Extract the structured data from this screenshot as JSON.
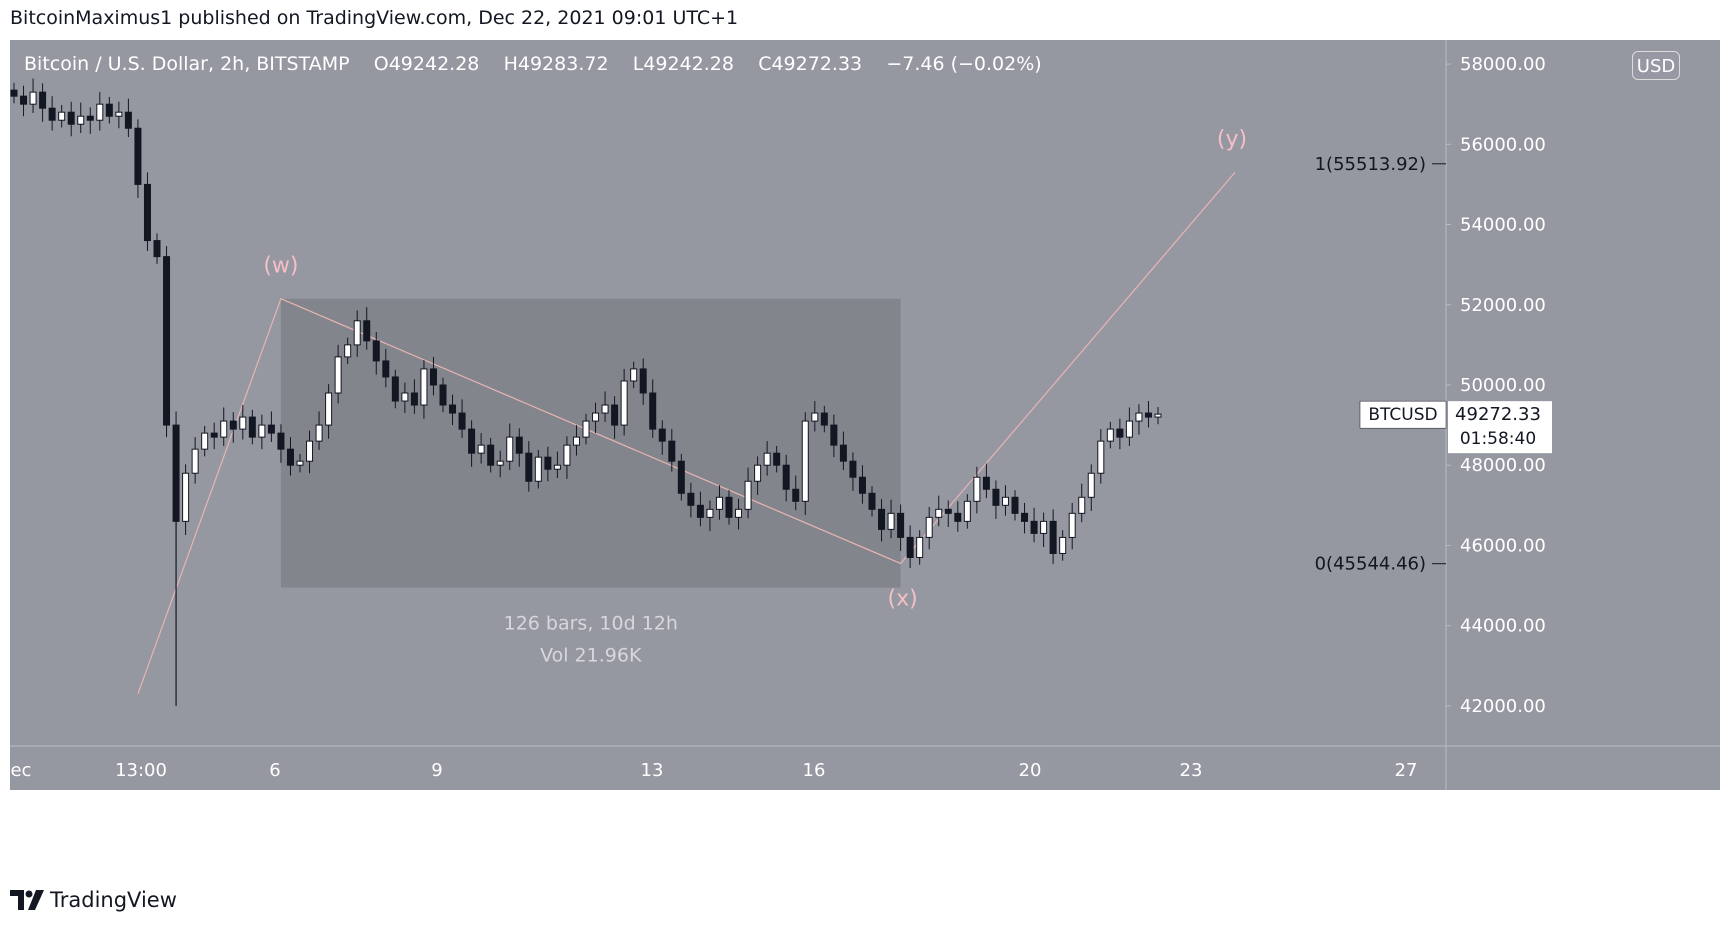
{
  "header": {
    "text": "BitcoinMaximus1 published on TradingView.com, Dec 22, 2021 09:01 UTC+1"
  },
  "legend": {
    "symbol": "Bitcoin / U.S. Dollar, 2h, BITSTAMP",
    "o_label": "O",
    "o": "49242.28",
    "h_label": "H",
    "h": "49283.72",
    "l_label": "L",
    "l": "49242.28",
    "c_label": "C",
    "c": "49272.33",
    "change": "−7.46 (−0.02%)"
  },
  "currency_badge": "USD",
  "footer": {
    "brand": "TradingView"
  },
  "colors": {
    "panel_bg": "#9598a1",
    "candle": "#131722",
    "wave_label": "#f7bfc8",
    "wave_line": "#e8b4b4",
    "range_box": "#7f8188",
    "axis_text": "#ffffff"
  },
  "chart_data": {
    "type": "candlestick",
    "ylim": [
      41000,
      58600
    ],
    "y_ticks": [
      "58000.00",
      "56000.00",
      "54000.00",
      "52000.00",
      "50000.00",
      "48000.00",
      "46000.00",
      "44000.00",
      "42000.00"
    ],
    "y_tick_values": [
      58000,
      56000,
      54000,
      52000,
      50000,
      48000,
      46000,
      44000,
      42000
    ],
    "x_ticks": [
      "Dec",
      "13:00",
      "6",
      "9",
      "13",
      "16",
      "20",
      "23",
      "27"
    ],
    "price_label": {
      "symbol": "BTCUSD",
      "price": "49272.33",
      "countdown": "01:58:40",
      "value": 49272.33
    },
    "fib_levels": [
      {
        "label": "1(55513.92)",
        "value": 55513.92
      },
      {
        "label": "0(45544.46)",
        "value": 45544.46
      }
    ],
    "wave_labels": [
      {
        "text": "(w)",
        "value": 52200
      },
      {
        "text": "(x)",
        "value": 45544
      },
      {
        "text": "(y)",
        "value": 55514
      }
    ],
    "measure_box": {
      "top": 52150,
      "bottom": 44950,
      "bars_text": "126 bars, 10d 12h",
      "vol_text": "Vol 21.96K"
    },
    "wave_path": [
      42300,
      52150,
      45550,
      55300
    ],
    "closes": [
      57200,
      57000,
      57300,
      56900,
      56600,
      56800,
      56500,
      56700,
      56600,
      57000,
      56700,
      56800,
      56400,
      55000,
      53600,
      53200,
      49000,
      46600,
      47800,
      48400,
      48800,
      48700,
      49100,
      48900,
      49200,
      48700,
      49000,
      48800,
      48400,
      48000,
      48100,
      48600,
      49000,
      49800,
      50700,
      51000,
      51600,
      51100,
      50600,
      50200,
      49600,
      49800,
      49500,
      50400,
      50000,
      49500,
      49300,
      48900,
      48300,
      48500,
      48000,
      48100,
      48700,
      48300,
      47600,
      48200,
      47900,
      48000,
      48500,
      48700,
      49100,
      49300,
      49500,
      49000,
      50100,
      50400,
      49800,
      48900,
      48600,
      48100,
      47300,
      47000,
      46700,
      46900,
      47200,
      46700,
      46900,
      47600,
      48000,
      48300,
      48000,
      47400,
      47100,
      49100,
      49300,
      49000,
      48500,
      48100,
      47700,
      47300,
      46900,
      46400,
      46800,
      46200,
      45700,
      46200,
      46700,
      46900,
      46800,
      46600,
      47100,
      47700,
      47400,
      47000,
      47200,
      46800,
      46600,
      46300,
      46600,
      45800,
      46200,
      46800,
      47200,
      47800,
      48600,
      48900,
      48700,
      49100,
      49300,
      49200,
      49272.33
    ]
  }
}
